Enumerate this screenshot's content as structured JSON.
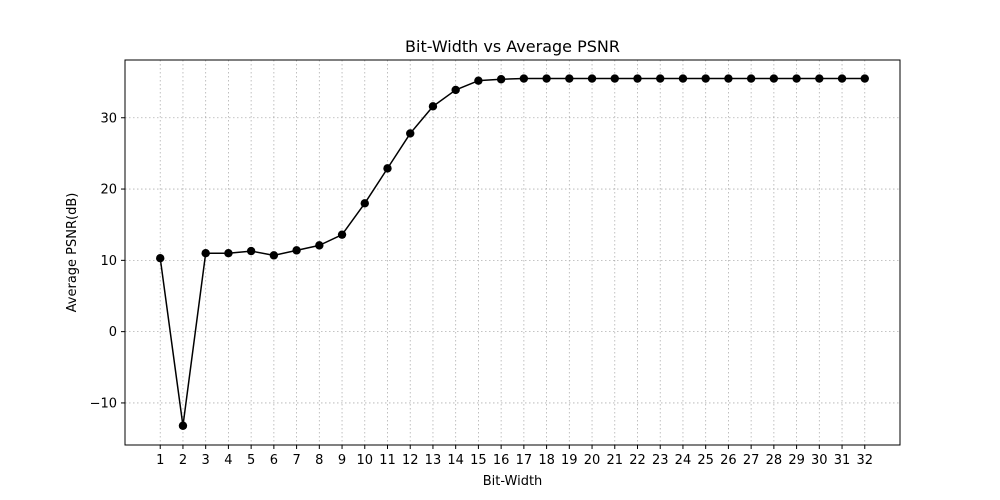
{
  "chart_data": {
    "type": "line",
    "title": "Bit-Width vs Average PSNR",
    "xlabel": "Bit-Width",
    "ylabel": "Average PSNR(dB)",
    "x": [
      1,
      2,
      3,
      4,
      5,
      6,
      7,
      8,
      9,
      10,
      11,
      12,
      13,
      14,
      15,
      16,
      17,
      18,
      19,
      20,
      21,
      22,
      23,
      24,
      25,
      26,
      27,
      28,
      29,
      30,
      31,
      32
    ],
    "xticks": [
      "1",
      "2",
      "3",
      "4",
      "5",
      "6",
      "7",
      "8",
      "9",
      "10",
      "11",
      "12",
      "13",
      "14",
      "15",
      "16",
      "17",
      "18",
      "19",
      "20",
      "21",
      "22",
      "23",
      "24",
      "25",
      "26",
      "27",
      "28",
      "29",
      "30",
      "31",
      "32"
    ],
    "xlim": [
      -0.55,
      33.55
    ],
    "ylim": [
      -15.9,
      38.1
    ],
    "yticks": [
      -10,
      0,
      10,
      20,
      30
    ],
    "ytick_labels": [
      "−10",
      "0",
      "10",
      "20",
      "30"
    ],
    "grid": true,
    "series": [
      {
        "color": "#000000",
        "marker": "circle",
        "values": [
          10.3,
          -13.2,
          11.0,
          11.0,
          11.3,
          10.7,
          11.4,
          12.1,
          13.6,
          18.0,
          22.9,
          27.8,
          31.6,
          33.9,
          35.2,
          35.4,
          35.5,
          35.5,
          35.5,
          35.5,
          35.5,
          35.5,
          35.5,
          35.5,
          35.5,
          35.5,
          35.5,
          35.5,
          35.5,
          35.5,
          35.5,
          35.5
        ]
      }
    ]
  }
}
